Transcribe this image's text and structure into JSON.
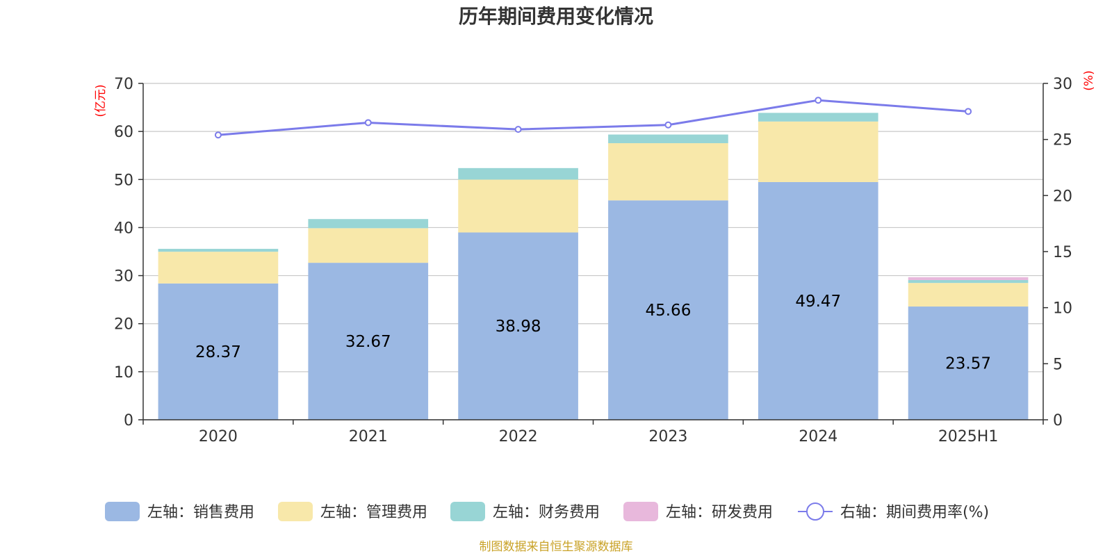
{
  "chart_data": {
    "type": "bar",
    "title": "历年期间费用变化情况",
    "categories": [
      "2020",
      "2021",
      "2022",
      "2023",
      "2024",
      "2025H1"
    ],
    "left_axis": {
      "unit": "(亿元)",
      "ylim": [
        0,
        70
      ],
      "ticks": [
        0,
        10,
        20,
        30,
        40,
        50,
        60,
        70
      ]
    },
    "right_axis": {
      "unit": "(%)",
      "ylim": [
        0,
        30
      ],
      "ticks": [
        0,
        5,
        10,
        15,
        20,
        25,
        30
      ]
    },
    "stacked": true,
    "grid": true,
    "legend_position": "bottom",
    "series": [
      {
        "name": "左轴：销售费用",
        "axis": "left",
        "color": "#9bb8e3",
        "values": [
          28.37,
          32.67,
          38.98,
          45.66,
          49.47,
          23.57
        ],
        "show_labels": true
      },
      {
        "name": "左轴：管理费用",
        "axis": "left",
        "color": "#f8e8aa",
        "values": [
          6.6,
          7.2,
          11.0,
          11.9,
          12.6,
          4.9
        ],
        "show_labels": false
      },
      {
        "name": "左轴：财务费用",
        "axis": "left",
        "color": "#98d5d5",
        "values": [
          0.6,
          1.9,
          2.4,
          1.8,
          1.8,
          0.6
        ],
        "show_labels": false
      },
      {
        "name": "左轴：研发费用",
        "axis": "left",
        "color": "#e8b8dc",
        "values": [
          0,
          0,
          0,
          0,
          0,
          0.6
        ],
        "show_labels": false
      }
    ],
    "line_series": {
      "name": "右轴：期间费用率(%)",
      "axis": "right",
      "color": "#7b7bea",
      "values": [
        25.4,
        26.5,
        25.9,
        26.3,
        28.5,
        27.5
      ]
    },
    "source_note": "制图数据来自恒生聚源数据库"
  }
}
